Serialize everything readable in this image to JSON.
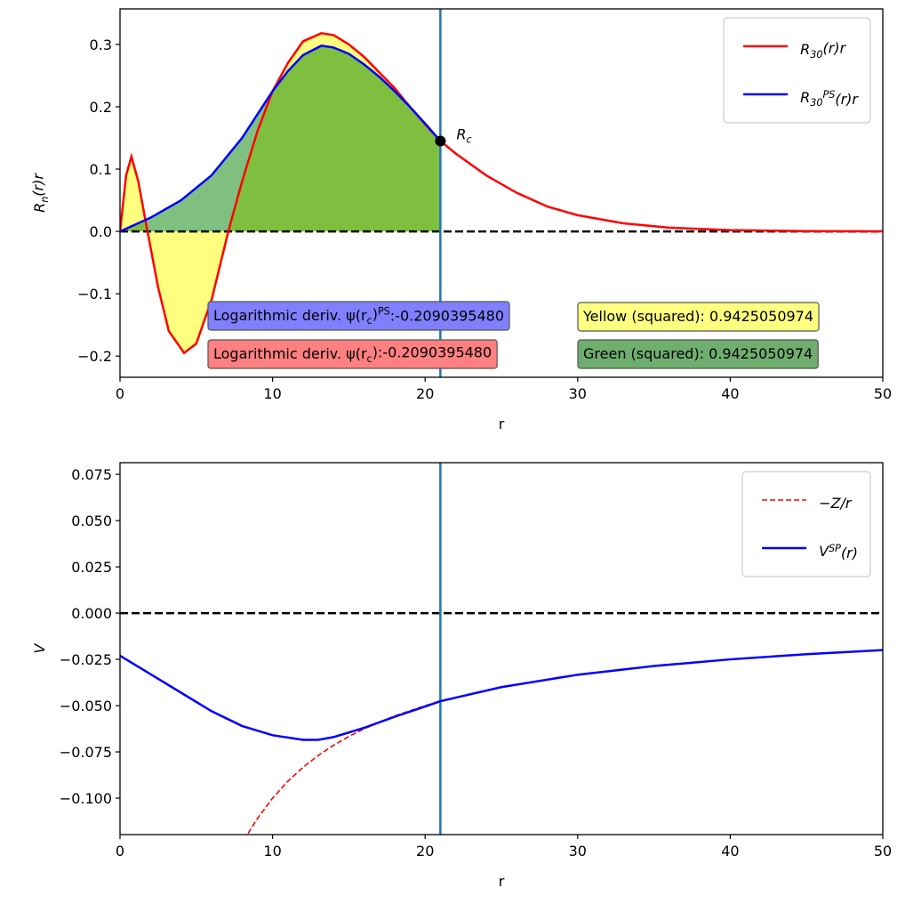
{
  "chart_data": [
    {
      "type": "line",
      "xlabel": "r",
      "ylabel": [
        [
          "R",
          "normal"
        ],
        [
          "n",
          "sub"
        ],
        [
          "(r)r",
          "normal"
        ]
      ],
      "xlim": [
        0,
        50
      ],
      "ylim": [
        -0.234,
        0.357
      ],
      "xticks": [
        0,
        10,
        20,
        30,
        40,
        50
      ],
      "yticks": [
        {
          "value": -0.2,
          "label": "−0.2"
        },
        {
          "value": -0.1,
          "label": "−0.1"
        },
        {
          "value": 0,
          "label": "0.0"
        },
        0.1,
        0.2,
        0.3
      ],
      "hline": 0,
      "vline": 21,
      "vline_color": "#1f77b4",
      "legend": "upper right",
      "series": [
        {
          "name": [
            [
              "R",
              "normal"
            ],
            [
              "30",
              "sub"
            ],
            [
              "(r)r",
              "normal"
            ]
          ],
          "color": "#ff0000",
          "dash": false,
          "fill": "#ffff00",
          "x": [
            0,
            0.4,
            0.75,
            1.2,
            1.8,
            2.5,
            3.2,
            4.2,
            5,
            6,
            7.1,
            8,
            9,
            10,
            11,
            12,
            13.2,
            14,
            15,
            16,
            17,
            18,
            19,
            20,
            21,
            22,
            24,
            26,
            28,
            30,
            33,
            36,
            40,
            45,
            50
          ],
          "values": [
            0,
            0.09,
            0.12,
            0.08,
            0,
            -0.09,
            -0.16,
            -0.195,
            -0.18,
            -0.11,
            0,
            0.08,
            0.16,
            0.225,
            0.27,
            0.305,
            0.318,
            0.315,
            0.3,
            0.28,
            0.255,
            0.23,
            0.2,
            0.172,
            0.145,
            0.125,
            0.09,
            0.062,
            0.04,
            0.026,
            0.013,
            0.006,
            0.002,
            0.0005,
            0.0001
          ]
        },
        {
          "name": [
            [
              "R",
              "normal"
            ],
            [
              "30",
              "sub"
            ],
            [
              "PS",
              "sup"
            ],
            [
              "(r)r",
              "normal"
            ]
          ],
          "color": "#0000ff",
          "dash": false,
          "fill": "#008000",
          "x": [
            0,
            2,
            4,
            6,
            8,
            10,
            11,
            12,
            13.2,
            14,
            15,
            16,
            17,
            18,
            19,
            20,
            21
          ],
          "values": [
            0,
            0.022,
            0.05,
            0.09,
            0.15,
            0.225,
            0.257,
            0.283,
            0.298,
            0.295,
            0.285,
            0.268,
            0.248,
            0.225,
            0.2,
            0.173,
            0.145
          ]
        }
      ],
      "point": {
        "x": 21,
        "y": 0.145,
        "label": [
          [
            "R",
            "normal"
          ],
          [
            "c",
            "sub"
          ]
        ]
      },
      "boxes": [
        {
          "text": [
            [
              "Logarithmic deriv. ψ(r",
              "normal"
            ],
            [
              "c",
              "sub"
            ],
            [
              ")",
              "normal"
            ],
            [
              "PS",
              "sup"
            ],
            [
              ":-0.2090395480",
              "normal"
            ]
          ],
          "color": "#8080ff"
        },
        {
          "text": [
            [
              "Logarithmic deriv. ψ(r",
              "normal"
            ],
            [
              "c",
              "sub"
            ],
            [
              "):-0.2090395480",
              "normal"
            ]
          ],
          "color": "#ff8080"
        },
        {
          "text": [
            [
              "Yellow (squared): 0.9425050974",
              "normal"
            ]
          ],
          "color": "#ffff80"
        },
        {
          "text": [
            [
              "Green (squared): 0.9425050974",
              "normal"
            ]
          ],
          "color": "#6fae6f"
        }
      ]
    },
    {
      "type": "line",
      "xlabel": "r",
      "ylabel": [
        [
          "V",
          "normal"
        ]
      ],
      "xlim": [
        0,
        50
      ],
      "ylim": [
        -0.1197,
        0.0813
      ],
      "xticks": [
        0,
        10,
        20,
        30,
        40,
        50
      ],
      "yticks": [
        {
          "value": -0.1,
          "label": "−0.100"
        },
        {
          "value": -0.075,
          "label": "−0.075"
        },
        {
          "value": -0.05,
          "label": "−0.050"
        },
        {
          "value": -0.025,
          "label": "−0.025"
        },
        {
          "value": 0,
          "label": "0.000"
        },
        {
          "value": 0.025,
          "label": "0.025"
        },
        {
          "value": 0.05,
          "label": "0.050"
        },
        {
          "value": 0.075,
          "label": "0.075"
        }
      ],
      "hline": 0,
      "vline": 21,
      "vline_color": "#1f77b4",
      "legend": "upper right",
      "series": [
        {
          "name": [
            [
              "−Z/r",
              "normal"
            ]
          ],
          "color": "#ff0000",
          "dash": true,
          "x": [
            8.4,
            9,
            10,
            11,
            12,
            13,
            14,
            15,
            16,
            18,
            20,
            21,
            25,
            30,
            35,
            40,
            45,
            50
          ],
          "values": [
            -0.119,
            -0.1111,
            -0.1,
            -0.0909,
            -0.0833,
            -0.0769,
            -0.0714,
            -0.0667,
            -0.0625,
            -0.0556,
            -0.05,
            -0.0476,
            -0.04,
            -0.0333,
            -0.0286,
            -0.025,
            -0.0222,
            -0.02
          ]
        },
        {
          "name": [
            [
              "V",
              "normal"
            ],
            [
              "SP",
              "sup"
            ],
            [
              "(r)",
              "normal"
            ]
          ],
          "color": "#0000ff",
          "dash": false,
          "x": [
            0,
            2,
            4,
            6,
            8,
            10,
            12,
            13,
            14,
            16,
            18,
            20,
            21,
            25,
            30,
            35,
            40,
            45,
            50
          ],
          "values": [
            -0.023,
            -0.033,
            -0.043,
            -0.053,
            -0.061,
            -0.066,
            -0.0685,
            -0.0685,
            -0.067,
            -0.062,
            -0.056,
            -0.0505,
            -0.0476,
            -0.04,
            -0.0333,
            -0.0286,
            -0.025,
            -0.0222,
            -0.02
          ]
        }
      ]
    }
  ]
}
